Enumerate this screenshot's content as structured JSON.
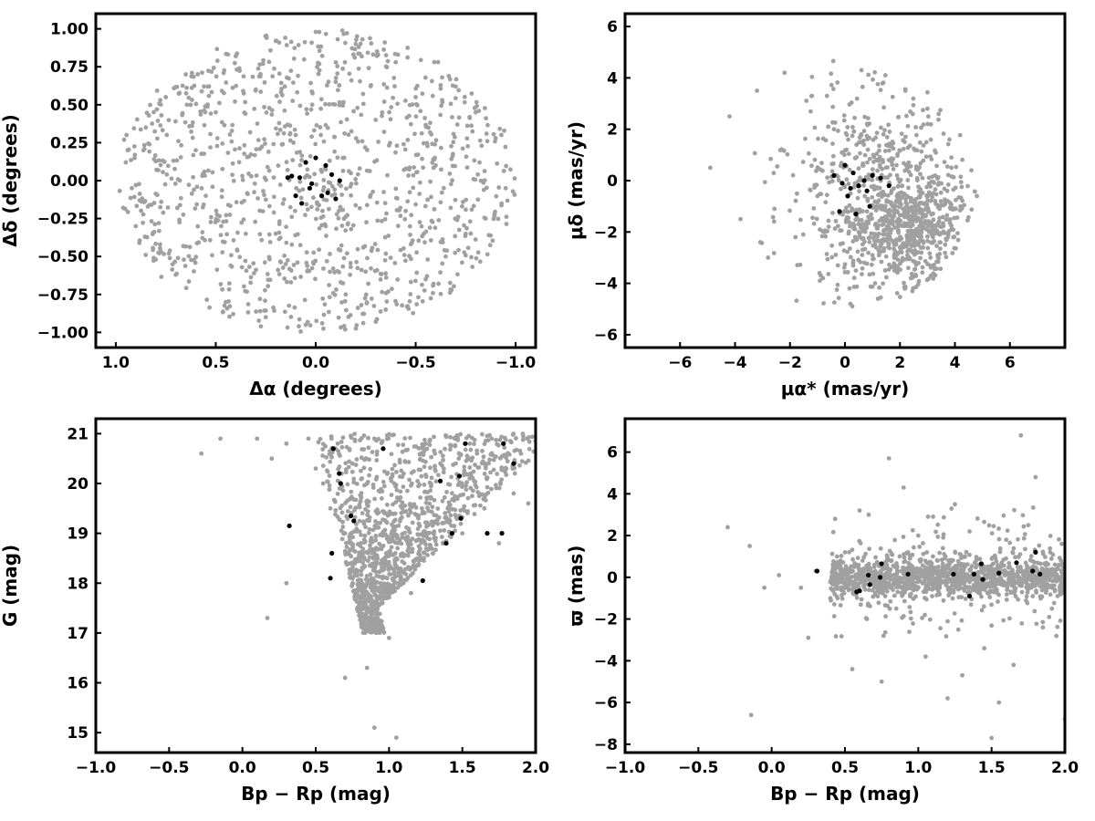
{
  "colors": {
    "field": "#a0a0a0",
    "members": "#000000",
    "frame": "#000000"
  },
  "chart_data": [
    {
      "type": "scatter",
      "xlabel": "Δα (degrees)",
      "ylabel": "Δδ (degrees)",
      "xlim": [
        1.1,
        -1.1
      ],
      "ylim": [
        -1.1,
        1.1
      ],
      "xticks": [
        1.0,
        0.5,
        0.0,
        -0.5,
        -1.0
      ],
      "xtick_labels": [
        "1.0",
        "0.5",
        "0.0",
        "−0.5",
        "−1.0"
      ],
      "yticks": [
        1.0,
        0.75,
        0.5,
        0.25,
        0.0,
        -0.25,
        -0.5,
        -0.75,
        -1.0
      ],
      "ytick_labels": [
        "1.00",
        "0.75",
        "0.50",
        "0.25",
        "0.00",
        "−0.25",
        "−0.50",
        "−0.75",
        "−1.00"
      ],
      "series": [
        {
          "role": "field",
          "points": [
            [
              0.95,
              0.12
            ],
            [
              0.9,
              -0.3
            ],
            [
              0.85,
              0.35
            ],
            [
              0.8,
              -0.52
            ],
            [
              0.75,
              0.55
            ],
            [
              0.7,
              -0.62
            ],
            [
              0.65,
              0.7
            ],
            [
              0.6,
              0.2
            ],
            [
              0.55,
              -0.1
            ],
            [
              0.5,
              0.45
            ],
            [
              0.45,
              -0.8
            ],
            [
              0.4,
              0.82
            ],
            [
              0.35,
              -0.35
            ],
            [
              0.3,
              0.6
            ],
            [
              0.25,
              -0.9
            ],
            [
              0.2,
              0.92
            ],
            [
              0.15,
              -0.55
            ],
            [
              0.1,
              0.3
            ],
            [
              0.05,
              -0.95
            ],
            [
              0.0,
              0.98
            ],
            [
              -0.05,
              -0.3
            ],
            [
              -0.1,
              0.65
            ],
            [
              -0.15,
              -0.75
            ],
            [
              -0.2,
              0.9
            ],
            [
              -0.25,
              -0.6
            ],
            [
              -0.3,
              0.4
            ],
            [
              -0.35,
              -0.85
            ],
            [
              -0.4,
              0.78
            ],
            [
              -0.45,
              -0.2
            ],
            [
              -0.5,
              0.55
            ],
            [
              -0.55,
              -0.65
            ],
            [
              -0.6,
              0.1
            ],
            [
              -0.65,
              -0.5
            ],
            [
              -0.7,
              0.62
            ],
            [
              -0.75,
              -0.35
            ],
            [
              -0.8,
              0.45
            ],
            [
              -0.85,
              -0.25
            ],
            [
              -0.9,
              0.28
            ],
            [
              -0.95,
              -0.05
            ],
            [
              0.92,
              -0.05
            ]
          ]
        },
        {
          "role": "members",
          "points": [
            [
              0.0,
              0.15
            ],
            [
              0.05,
              0.12
            ],
            [
              -0.05,
              0.1
            ],
            [
              0.08,
              0.02
            ],
            [
              -0.08,
              0.04
            ],
            [
              0.03,
              -0.05
            ],
            [
              -0.03,
              -0.1
            ],
            [
              0.1,
              -0.1
            ],
            [
              -0.1,
              -0.12
            ],
            [
              0.07,
              -0.15
            ],
            [
              0.12,
              0.03
            ],
            [
              -0.12,
              0.0
            ],
            [
              0.02,
              -0.02
            ],
            [
              -0.06,
              -0.08
            ],
            [
              0.14,
              0.02
            ]
          ]
        }
      ]
    },
    {
      "type": "scatter",
      "xlabel": "μα* (mas/yr)",
      "ylabel": "μδ (mas/yr)",
      "xlim": [
        -8,
        8
      ],
      "ylim": [
        -6.5,
        6.5
      ],
      "xticks": [
        -6,
        -4,
        -2,
        0,
        2,
        4,
        6
      ],
      "xtick_labels": [
        "−6",
        "−4",
        "−2",
        "0",
        "2",
        "4",
        "6"
      ],
      "yticks": [
        6,
        4,
        2,
        0,
        -2,
        -4,
        -6
      ],
      "ytick_labels": [
        "6",
        "4",
        "2",
        "0",
        "−2",
        "−4",
        "−6"
      ],
      "series": [
        {
          "role": "field",
          "points": [
            [
              -4.9,
              0.5
            ],
            [
              -4.2,
              2.5
            ],
            [
              -3.8,
              -1.5
            ],
            [
              -3.2,
              3.5
            ],
            [
              -2.8,
              -3
            ],
            [
              -2.2,
              4.2
            ],
            [
              -1.8,
              -2.2
            ],
            [
              -1.2,
              3.3
            ],
            [
              -0.8,
              -3.8
            ],
            [
              -0.4,
              2.0
            ],
            [
              0.2,
              -4.8
            ],
            [
              0.6,
              4.3
            ],
            [
              1.0,
              -2.9
            ],
            [
              1.4,
              1.8
            ],
            [
              1.8,
              -3.5
            ],
            [
              2.2,
              3.5
            ],
            [
              2.6,
              -1.5
            ],
            [
              3.0,
              2.8
            ],
            [
              3.4,
              -2.9
            ],
            [
              3.8,
              1.6
            ],
            [
              4.2,
              -1.0
            ],
            [
              4.6,
              0.4
            ],
            [
              4.8,
              -0.6
            ],
            [
              1.2,
              -4.6
            ],
            [
              2.4,
              -3.8
            ],
            [
              0.8,
              -1.2
            ],
            [
              3.2,
              -2.2
            ],
            [
              2.0,
              -2.6
            ],
            [
              1.6,
              0.8
            ],
            [
              -1.0,
              -0.6
            ]
          ]
        },
        {
          "role": "members",
          "points": [
            [
              0.0,
              0.6
            ],
            [
              0.3,
              0.3
            ],
            [
              -0.4,
              0.2
            ],
            [
              0.5,
              -0.2
            ],
            [
              0.1,
              -0.6
            ],
            [
              0.8,
              -0.4
            ],
            [
              -0.2,
              -1.2
            ],
            [
              0.4,
              -1.3
            ],
            [
              1.3,
              0.1
            ],
            [
              1.6,
              -0.2
            ],
            [
              1.0,
              0.2
            ],
            [
              0.7,
              0.0
            ],
            [
              0.2,
              -0.3
            ],
            [
              -0.1,
              -0.1
            ],
            [
              0.9,
              -1.0
            ]
          ]
        }
      ]
    },
    {
      "type": "scatter",
      "xlabel": "Bp − Rp (mag)",
      "ylabel": "G (mag)",
      "xlim": [
        -1.0,
        2.0
      ],
      "ylim": [
        14.6,
        21.3
      ],
      "xticks": [
        -1.0,
        -0.5,
        0.0,
        0.5,
        1.0,
        1.5,
        2.0
      ],
      "xtick_labels": [
        "−1.0",
        "−0.5",
        "0.0",
        "0.5",
        "1.0",
        "1.5",
        "2.0"
      ],
      "yticks": [
        21,
        20,
        19,
        18,
        17,
        16,
        15
      ],
      "ytick_labels": [
        "21",
        "20",
        "19",
        "18",
        "17",
        "16",
        "15"
      ],
      "series": [
        {
          "role": "field",
          "points": [
            [
              -0.28,
              20.6
            ],
            [
              -0.15,
              20.9
            ],
            [
              0.1,
              20.9
            ],
            [
              0.2,
              20.5
            ],
            [
              0.3,
              20.8
            ],
            [
              0.45,
              20.9
            ],
            [
              0.5,
              20.3
            ],
            [
              0.55,
              20.0
            ],
            [
              0.6,
              19.5
            ],
            [
              0.65,
              20.8
            ],
            [
              0.7,
              19.0
            ],
            [
              0.75,
              20.4
            ],
            [
              0.8,
              18.0
            ],
            [
              0.85,
              17.5
            ],
            [
              0.9,
              20.9
            ],
            [
              0.95,
              19.7
            ],
            [
              1.0,
              16.9
            ],
            [
              1.05,
              18.5
            ],
            [
              1.1,
              20.2
            ],
            [
              1.15,
              17.8
            ],
            [
              1.2,
              19.3
            ],
            [
              1.25,
              20.8
            ],
            [
              1.3,
              18.6
            ],
            [
              1.35,
              20.4
            ],
            [
              1.4,
              19.5
            ],
            [
              1.45,
              20.9
            ],
            [
              1.5,
              19.0
            ],
            [
              1.55,
              20.1
            ],
            [
              1.6,
              20.6
            ],
            [
              1.65,
              19.5
            ],
            [
              1.7,
              20.9
            ],
            [
              1.75,
              18.8
            ],
            [
              1.8,
              20.3
            ],
            [
              1.85,
              19.8
            ],
            [
              1.9,
              20.6
            ],
            [
              1.95,
              19.6
            ],
            [
              0.85,
              16.3
            ],
            [
              0.9,
              15.1
            ],
            [
              1.05,
              14.9
            ],
            [
              0.7,
              16.1
            ],
            [
              0.3,
              18.0
            ],
            [
              0.17,
              17.3
            ]
          ]
        },
        {
          "role": "members",
          "points": [
            [
              0.62,
              20.7
            ],
            [
              0.96,
              20.7
            ],
            [
              1.52,
              20.8
            ],
            [
              1.78,
              20.8
            ],
            [
              1.85,
              20.4
            ],
            [
              0.66,
              20.2
            ],
            [
              0.67,
              20.0
            ],
            [
              1.35,
              20.05
            ],
            [
              1.48,
              20.15
            ],
            [
              0.74,
              19.35
            ],
            [
              0.76,
              19.25
            ],
            [
              0.32,
              19.15
            ],
            [
              1.49,
              19.3
            ],
            [
              1.43,
              19.0
            ],
            [
              1.67,
              19.0
            ],
            [
              1.77,
              19.0
            ],
            [
              1.39,
              18.8
            ],
            [
              0.61,
              18.6
            ],
            [
              0.6,
              18.1
            ],
            [
              1.23,
              18.05
            ]
          ]
        }
      ]
    },
    {
      "type": "scatter",
      "xlabel": "Bp − Rp (mag)",
      "ylabel": "ϖ (mas)",
      "xlim": [
        -1.0,
        2.0
      ],
      "ylim": [
        -8.4,
        7.6
      ],
      "xticks": [
        -1.0,
        -0.5,
        0.0,
        0.5,
        1.0,
        1.5,
        2.0
      ],
      "xtick_labels": [
        "−1.0",
        "−0.5",
        "0.0",
        "0.5",
        "1.0",
        "1.5",
        "2.0"
      ],
      "yticks": [
        6,
        4,
        2,
        0,
        -2,
        -4,
        -6,
        -8
      ],
      "ytick_labels": [
        "6",
        "4",
        "2",
        "0",
        "−2",
        "−4",
        "−6",
        "−8"
      ],
      "series": [
        {
          "role": "field",
          "points": [
            [
              -0.3,
              2.4
            ],
            [
              -0.15,
              1.5
            ],
            [
              -0.14,
              -6.6
            ],
            [
              -0.05,
              -0.5
            ],
            [
              0.05,
              0.1
            ],
            [
              0.2,
              -0.5
            ],
            [
              0.3,
              0.3
            ],
            [
              0.45,
              -1.0
            ],
            [
              0.5,
              1.2
            ],
            [
              0.55,
              -4.4
            ],
            [
              0.6,
              3.2
            ],
            [
              0.65,
              -2.0
            ],
            [
              0.7,
              0.5
            ],
            [
              0.75,
              -5.0
            ],
            [
              0.8,
              5.7
            ],
            [
              0.85,
              -1.5
            ],
            [
              0.9,
              4.3
            ],
            [
              0.95,
              -0.8
            ],
            [
              1.0,
              2.0
            ],
            [
              1.05,
              -3.8
            ],
            [
              1.1,
              1.0
            ],
            [
              1.15,
              -0.3
            ],
            [
              1.2,
              -5.8
            ],
            [
              1.25,
              3.5
            ],
            [
              1.3,
              -4.7
            ],
            [
              1.35,
              2.2
            ],
            [
              1.4,
              0.6
            ],
            [
              1.45,
              -3.4
            ],
            [
              1.5,
              -7.7
            ],
            [
              1.55,
              -6.0
            ],
            [
              1.6,
              1.8
            ],
            [
              1.65,
              -4.2
            ],
            [
              1.7,
              6.8
            ],
            [
              1.75,
              2.5
            ],
            [
              1.8,
              4.8
            ],
            [
              1.85,
              -2.4
            ],
            [
              1.9,
              1.2
            ],
            [
              1.95,
              -0.9
            ],
            [
              2.0,
              -6.8
            ],
            [
              0.25,
              -2.9
            ]
          ]
        },
        {
          "role": "members",
          "points": [
            [
              0.31,
              0.3
            ],
            [
              0.58,
              -0.7
            ],
            [
              0.6,
              -0.65
            ],
            [
              0.66,
              0.1
            ],
            [
              0.67,
              -0.35
            ],
            [
              0.74,
              0.0
            ],
            [
              0.75,
              0.65
            ],
            [
              0.93,
              0.15
            ],
            [
              1.24,
              0.15
            ],
            [
              1.35,
              -0.9
            ],
            [
              1.38,
              0.15
            ],
            [
              1.43,
              0.65
            ],
            [
              1.44,
              -0.1
            ],
            [
              1.55,
              0.2
            ],
            [
              1.67,
              0.7
            ],
            [
              1.78,
              0.3
            ],
            [
              1.8,
              1.2
            ],
            [
              1.83,
              0.15
            ]
          ]
        }
      ]
    }
  ]
}
